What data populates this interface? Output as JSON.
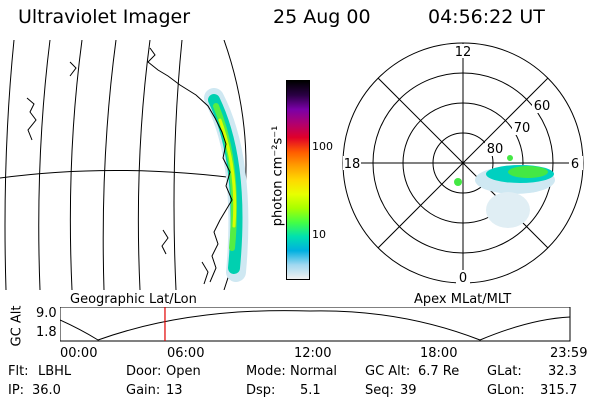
{
  "header": {
    "instrument": "Ultraviolet Imager",
    "date": "25 Aug 00",
    "time": "04:56:22 UT"
  },
  "colorbar": {
    "unit_label": "photon cm⁻²s⁻¹",
    "tick_labels": [
      "100",
      "10"
    ],
    "colors": [
      "#000000",
      "#2a0044",
      "#7a00a8",
      "#b00070",
      "#e0002a",
      "#ff5a00",
      "#ff9e00",
      "#ffd800",
      "#e8ff00",
      "#a8ff00",
      "#44ff44",
      "#00e0b0",
      "#00b0e0",
      "#a0d8f0",
      "#f0f0f0"
    ]
  },
  "polar_plot": {
    "mlt_labels": {
      "top": "12",
      "right": "6",
      "bottom": "0",
      "left": "18"
    },
    "lat_labels": [
      "60",
      "70",
      "80"
    ]
  },
  "altitude_plot": {
    "left_label": "Geographic Lat/Lon",
    "right_label": "Apex MLat/MLT",
    "y_axis_label": "GC Alt",
    "y_ticks": [
      "9.0",
      "1.8"
    ],
    "x_ticks": [
      "00:00",
      "06:00",
      "12:00",
      "18:00",
      "23:59"
    ],
    "current_time_marker_hours": 4.94
  },
  "info": {
    "filter_label": "Flt:",
    "filter_value": "LBHL",
    "ip_label": "IP:",
    "ip_value": "36.0",
    "door_label": "Door:",
    "door_value": "Open",
    "gain_label": "Gain:",
    "gain_value": "13",
    "mode_label": "Mode:",
    "mode_value": "Normal",
    "dsp_label": "Dsp:",
    "dsp_value": "5.1",
    "gcalt_label": "GC Alt:",
    "gcalt_value": "6.7 Re",
    "seq_label": "Seq:",
    "seq_value": "39",
    "glat_label": "GLat:",
    "glat_value": "32.3",
    "glon_label": "GLon:",
    "glon_value": "315.7"
  }
}
